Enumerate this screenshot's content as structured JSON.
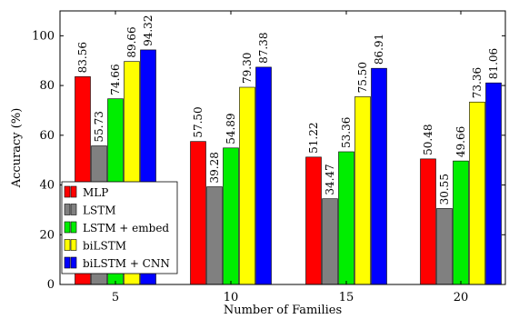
{
  "chart_data": {
    "type": "bar",
    "xlabel": "Number of Families",
    "ylabel": "Accuracy (%)",
    "ylim": [
      0,
      110
    ],
    "yticks": [
      0,
      20,
      40,
      60,
      80,
      100
    ],
    "categories": [
      "5",
      "10",
      "15",
      "20"
    ],
    "series": [
      {
        "name": "MLP",
        "color": "#ff0000",
        "values": [
          83.56,
          57.5,
          51.22,
          50.48
        ],
        "labels": [
          "83.56",
          "57.50",
          "51.22",
          "50.48"
        ]
      },
      {
        "name": "LSTM",
        "color": "#808080",
        "values": [
          55.73,
          39.28,
          34.47,
          30.55
        ],
        "labels": [
          "55.73",
          "39.28",
          "34.47",
          "30.55"
        ]
      },
      {
        "name": "LSTM + embed",
        "color": "#00ee00",
        "values": [
          74.66,
          54.89,
          53.36,
          49.66
        ],
        "labels": [
          "74.66",
          "54.89",
          "53.36",
          "49.66"
        ]
      },
      {
        "name": "biLSTM",
        "color": "#ffff00",
        "values": [
          89.66,
          79.3,
          75.5,
          73.36
        ],
        "labels": [
          "89.66",
          "79.30",
          "75.50",
          "73.36"
        ]
      },
      {
        "name": "biLSTM + CNN",
        "color": "#0000ff",
        "values": [
          94.32,
          87.38,
          86.91,
          81.06
        ],
        "labels": [
          "94.32",
          "87.38",
          "86.91",
          "81.06"
        ]
      }
    ],
    "legend_position": "bottom-left",
    "grid": false
  }
}
